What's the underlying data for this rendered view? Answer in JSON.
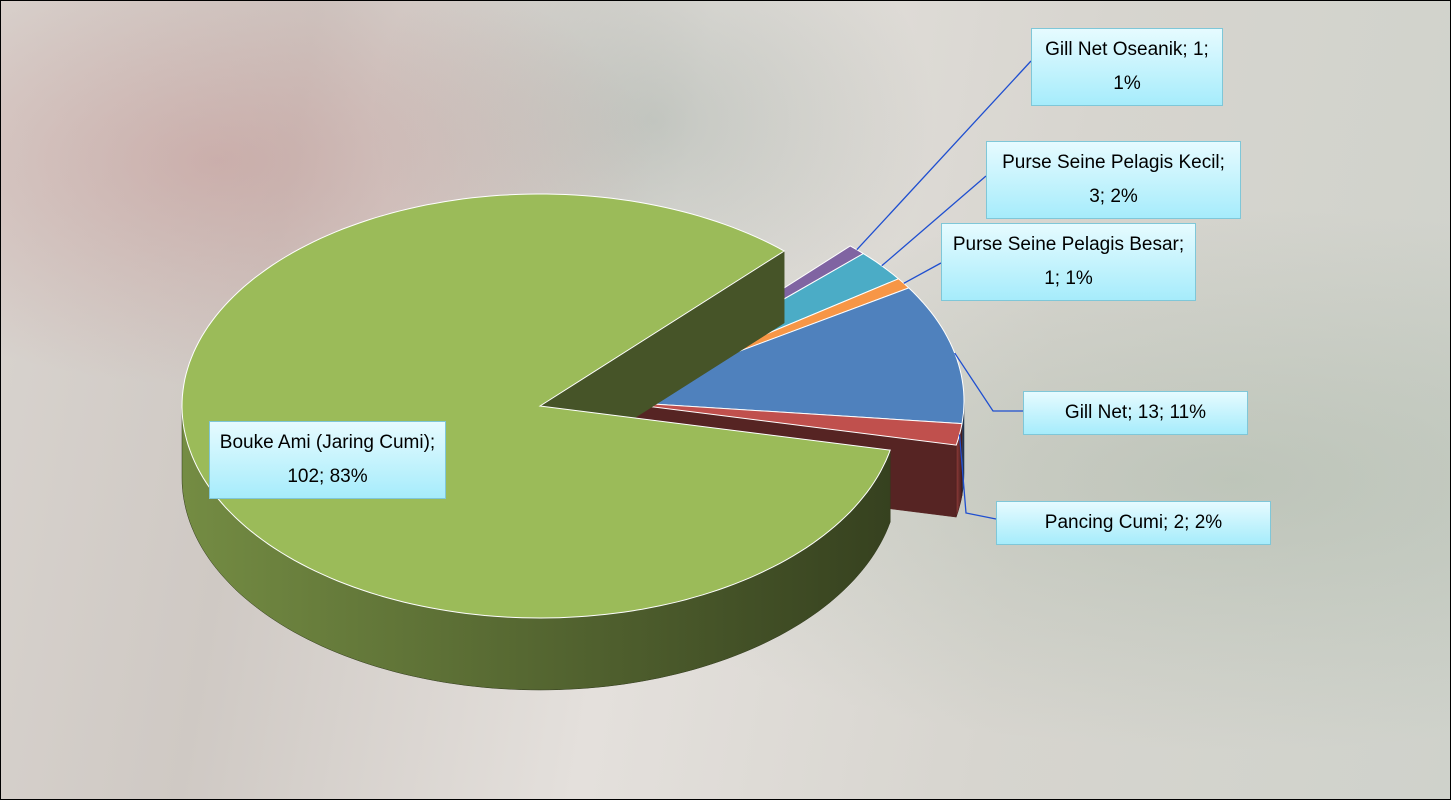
{
  "chart_data": {
    "type": "pie3d",
    "values": [
      1,
      3,
      1,
      13,
      2,
      102
    ],
    "value_labels": [
      "Gill Net Oseanik; 1; 1%",
      "Purse Seine Pelagis Kecil; 3; 2%",
      "Purse Seine Pelagis Besar; 1; 1%",
      "Gill Net; 13; 11%",
      "Pancing Cumi; 2; 2%",
      "Bouke Ami (Jaring Cumi); 102; 83%"
    ],
    "colors": [
      "#8064a2",
      "#4bacc6",
      "#f79646",
      "#4f81bd",
      "#c0504d",
      "#9bbb59"
    ]
  }
}
